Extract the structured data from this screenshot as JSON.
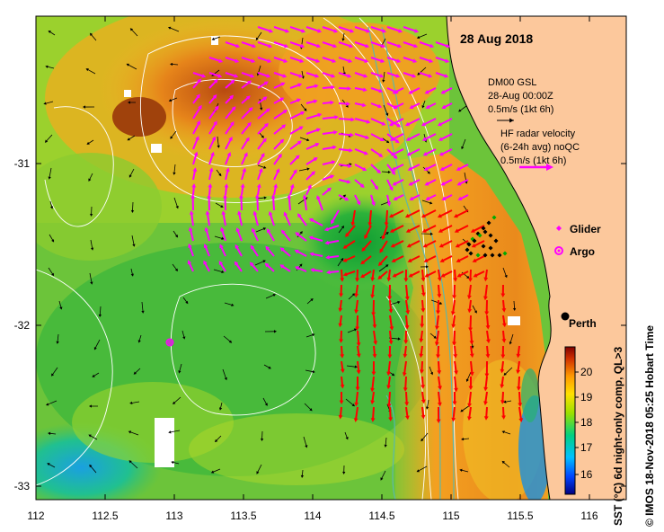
{
  "map": {
    "date_title": "28 Aug 2018",
    "x_ticks": [
      "112",
      "112.5",
      "113",
      "113.5",
      "114",
      "114.5",
      "115",
      "115.5",
      "116"
    ],
    "y_ticks": [
      "-31",
      "-32",
      "-33"
    ],
    "place_label": "Perth",
    "legend": {
      "model_lines": [
        "DM00 GSL",
        "28-Aug 00:00Z",
        "0.5m/s (1kt 6h)"
      ],
      "hf_lines": [
        "HF radar velocity",
        "(6-24h avg) noQC",
        "0.5m/s (1kt 6h)"
      ],
      "glider_label": "Glider",
      "argo_label": "Argo"
    },
    "colorbar": {
      "tick_labels": [
        "16",
        "17",
        "18",
        "19",
        "20"
      ],
      "axis_label": "SST (°C) 6d night-only comp, QL>3"
    },
    "credit": "© IMOS 18-Nov-2018 05:25 Hobart Time",
    "colors": {
      "land": "#fcc89c",
      "hf_arrow": "#ff00ff",
      "model_arrow": "#000000",
      "red_arrow": "#ff0000",
      "contour": "#ffffff",
      "bathy": "#5fb8a8"
    }
  }
}
